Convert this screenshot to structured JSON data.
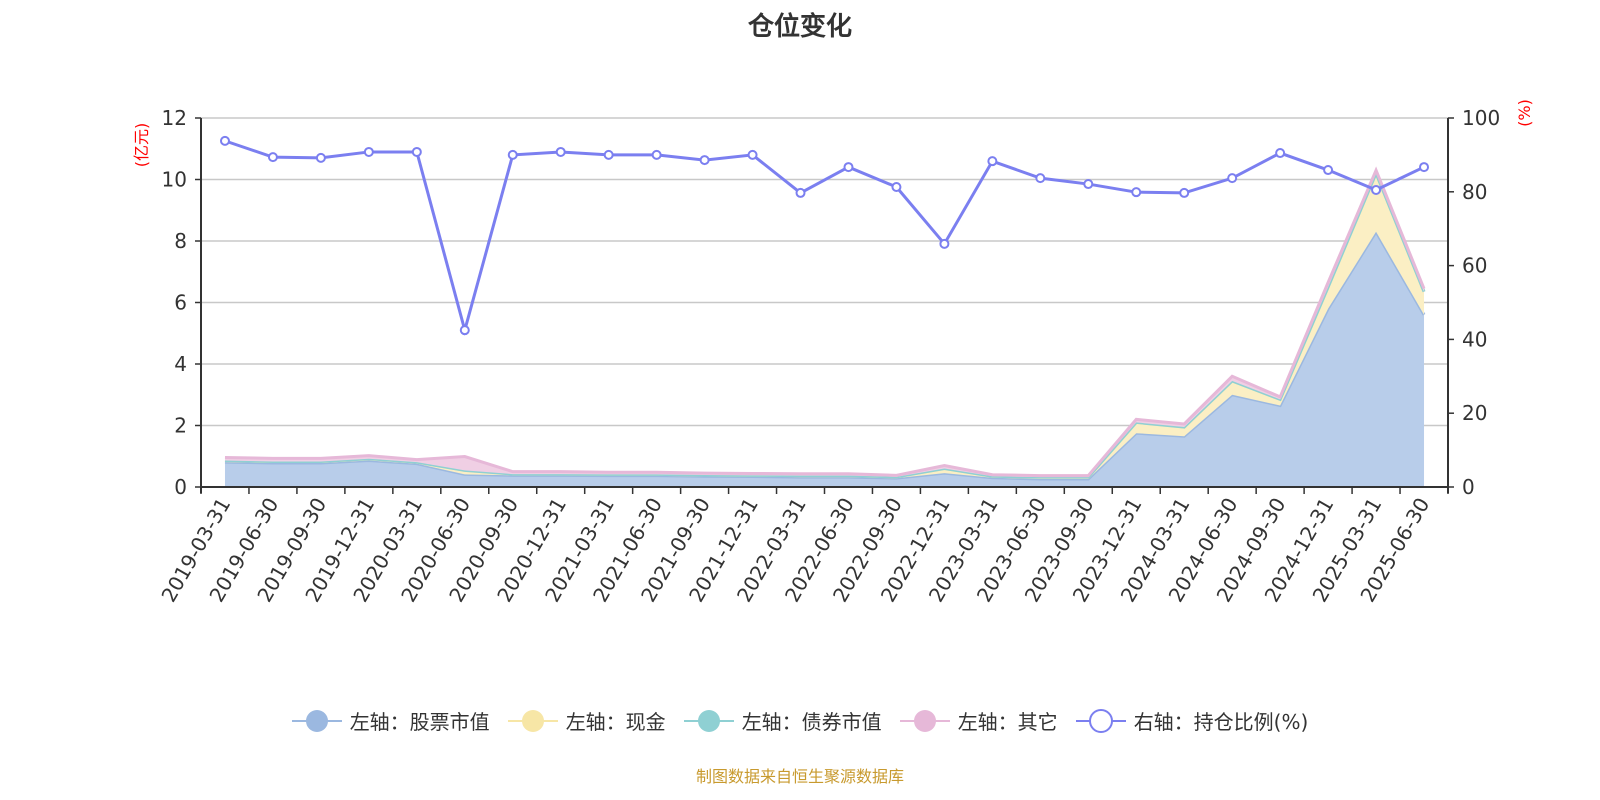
{
  "chart_data": {
    "type": "area",
    "title": "仓位变化",
    "left_axis": {
      "label": "(亿元)",
      "range": [
        0,
        12
      ],
      "ticks": [
        0,
        2,
        4,
        6,
        8,
        10,
        12
      ]
    },
    "right_axis": {
      "label": "(%)",
      "range": [
        0,
        100
      ],
      "ticks": [
        0,
        20,
        40,
        60,
        80,
        100
      ]
    },
    "grid": true,
    "legend_position": "bottom",
    "categories": [
      "2019-03-31",
      "2019-06-30",
      "2019-09-30",
      "2019-12-31",
      "2020-03-31",
      "2020-06-30",
      "2020-09-30",
      "2020-12-31",
      "2021-03-31",
      "2021-06-30",
      "2021-09-30",
      "2021-12-31",
      "2022-03-31",
      "2022-06-30",
      "2022-09-30",
      "2022-12-31",
      "2023-03-31",
      "2023-06-30",
      "2023-09-30",
      "2023-12-31",
      "2024-03-31",
      "2024-06-30",
      "2024-09-30",
      "2024-12-31",
      "2025-03-31",
      "2025-06-30"
    ],
    "series": [
      {
        "name": "左轴：股票市值",
        "axis": "left",
        "stacked": true,
        "color": "#9bb8e0",
        "fill": "#b8cdea",
        "values": [
          0.81,
          0.78,
          0.78,
          0.86,
          0.76,
          0.41,
          0.38,
          0.38,
          0.37,
          0.37,
          0.35,
          0.34,
          0.32,
          0.32,
          0.29,
          0.45,
          0.3,
          0.26,
          0.26,
          1.75,
          1.65,
          3.0,
          2.65,
          5.8,
          8.3,
          5.6
        ]
      },
      {
        "name": "左轴：现金",
        "axis": "left",
        "stacked": true,
        "color": "#f7e6a6",
        "fill": "#fbefc4",
        "values": [
          0.05,
          0.05,
          0.05,
          0.06,
          0.05,
          0.13,
          0.04,
          0.04,
          0.04,
          0.04,
          0.04,
          0.04,
          0.05,
          0.05,
          0.04,
          0.15,
          0.05,
          0.06,
          0.06,
          0.35,
          0.3,
          0.45,
          0.2,
          0.7,
          1.9,
          0.75
        ]
      },
      {
        "name": "左轴：债券市值",
        "axis": "left",
        "stacked": true,
        "color": "#8fd0d3",
        "fill": "#b5e0e2",
        "values": [
          0,
          0,
          0,
          0,
          0,
          0,
          0,
          0,
          0,
          0,
          0,
          0,
          0,
          0,
          0,
          0,
          0,
          0,
          0,
          0,
          0,
          0,
          0,
          0,
          0,
          0
        ]
      },
      {
        "name": "左轴：其它",
        "axis": "left",
        "stacked": true,
        "color": "#e6b8d8",
        "fill": "#f0cfe4",
        "values": [
          0.1,
          0.1,
          0.1,
          0.1,
          0.08,
          0.45,
          0.08,
          0.08,
          0.07,
          0.07,
          0.06,
          0.06,
          0.06,
          0.06,
          0.05,
          0.1,
          0.05,
          0.05,
          0.05,
          0.1,
          0.1,
          0.15,
          0.08,
          0.15,
          0.1,
          0.1
        ]
      },
      {
        "name": "右轴：持仓比例(%)",
        "axis": "right",
        "type": "line",
        "color": "#7b7ff0",
        "values": [
          93.8,
          89.4,
          89.2,
          90.8,
          90.8,
          42.5,
          90.0,
          90.8,
          90.0,
          90.0,
          88.6,
          90.0,
          79.7,
          86.7,
          81.3,
          65.9,
          88.3,
          83.7,
          82.1,
          79.9,
          79.7,
          83.7,
          90.5,
          85.9,
          80.5,
          86.7
        ]
      }
    ]
  },
  "footer": "制图数据来自恒生聚源数据库"
}
